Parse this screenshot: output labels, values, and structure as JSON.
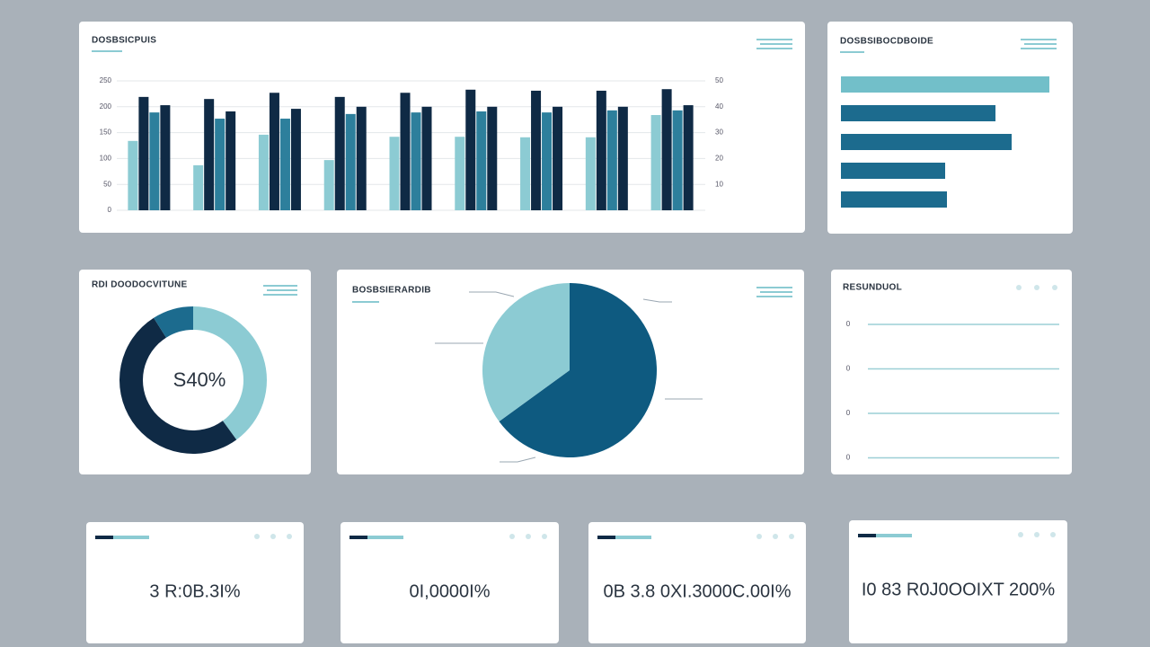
{
  "chart_data": [
    {
      "type": "bar",
      "title": "DOSBSICPUIS",
      "categories": [
        null,
        null,
        null,
        null,
        null,
        null,
        null,
        null,
        null
      ],
      "series": [
        {
          "color": "#8ccbd3",
          "values": [
            134,
            87,
            146,
            97,
            142,
            142,
            141,
            141,
            184
          ]
        },
        {
          "color": "#0f2a45",
          "values": [
            219,
            215,
            227,
            219,
            227,
            233,
            231,
            231,
            234
          ]
        },
        {
          "color": "#2d7f9c",
          "values": [
            189,
            177,
            177,
            186,
            189,
            191,
            189,
            193,
            193
          ]
        },
        {
          "color": "#0f2a45",
          "values": [
            203,
            191,
            196,
            200,
            200,
            200,
            200,
            200,
            203
          ]
        }
      ],
      "ylim": [
        0,
        250
      ],
      "yticks": [
        0,
        50,
        100,
        150,
        200,
        250
      ],
      "y2lim": [
        0,
        50
      ],
      "y2ticks": [
        10,
        20,
        30,
        40,
        50
      ],
      "grid": true
    },
    {
      "type": "barh",
      "title": "DOSBSIBOCDBOIDE",
      "values": [
        232,
        172,
        190,
        116,
        118
      ],
      "colors": [
        "#72bfc9",
        "#1c6b8e",
        "#1c6b8e",
        "#1c6b8e",
        "#1c6b8e"
      ],
      "xlim": [
        0,
        250
      ]
    },
    {
      "type": "donut",
      "title": "RDI DOODOCVITUNE",
      "center_label": "S40%",
      "values": [
        40,
        51,
        9
      ],
      "colors": [
        "#8ccbd3",
        "#0f2a45",
        "#1c6b8e"
      ]
    },
    {
      "type": "pie",
      "title": "BOSBSIERARDIB",
      "values": [
        65,
        35
      ],
      "colors": [
        "#0e5a80",
        "#8ccbd3"
      ]
    }
  ],
  "panel": {
    "title": "RESUNDUOL",
    "rows": [
      "0",
      "0",
      "0",
      "0"
    ]
  },
  "kpis": [
    {
      "value": "3 R:0B.3I%"
    },
    {
      "value": "0I,0000I%"
    },
    {
      "value": "0B 3.8 0XI.3000C.00I%"
    },
    {
      "value": "I0 83 R0J0OOIXT 200%"
    }
  ]
}
